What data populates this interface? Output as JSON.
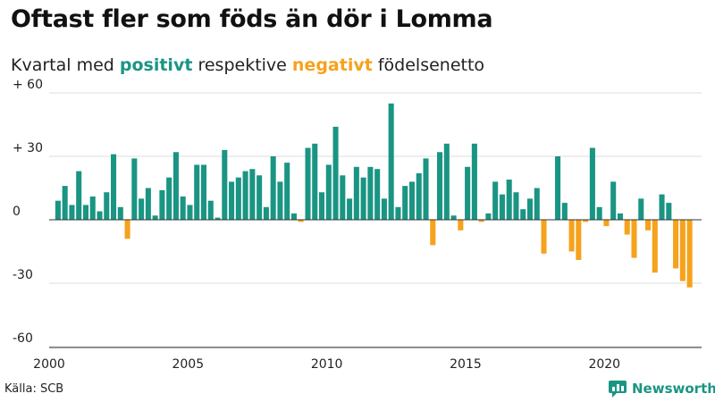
{
  "title": "Oftast fler som föds än dör i Lomma",
  "subtitle": {
    "prefix": "Kvartal med ",
    "positive_word": "positivt",
    "middle": " respektive ",
    "negative_word": "negativt",
    "suffix": " födelsenetto"
  },
  "source": "Källa: SCB",
  "brand": "Newsworthy",
  "colors": {
    "positive": "#1a9583",
    "negative": "#f5a21c",
    "grid": "#dddddd",
    "baseline": "#333333"
  },
  "chart_data": {
    "type": "bar",
    "x_start": "2000 Q1",
    "x_ticks": [
      2000,
      2005,
      2010,
      2015,
      2020
    ],
    "y_ticks": [
      60,
      30,
      0,
      -30,
      -60
    ],
    "y_tick_labels": [
      "+ 60",
      "+ 30",
      "0",
      "-30",
      "-60"
    ],
    "ylim": [
      -60,
      60
    ],
    "grid": true,
    "values": [
      9,
      16,
      7,
      23,
      7,
      11,
      4,
      13,
      31,
      6,
      -9,
      29,
      10,
      15,
      2,
      14,
      20,
      32,
      11,
      7,
      26,
      26,
      9,
      1,
      33,
      18,
      20,
      23,
      24,
      21,
      6,
      30,
      18,
      27,
      3,
      -1,
      34,
      36,
      13,
      26,
      44,
      21,
      10,
      25,
      20,
      25,
      24,
      10,
      55,
      6,
      16,
      18,
      22,
      29,
      -12,
      32,
      36,
      2,
      -5,
      25,
      36,
      -1,
      3,
      18,
      12,
      19,
      13,
      5,
      10,
      15,
      -16,
      0,
      30,
      8,
      -15,
      -19,
      -1,
      34,
      6,
      -3,
      18,
      3,
      -7,
      -18,
      10,
      -5,
      -25,
      12,
      8,
      -23,
      -29,
      -32
    ]
  }
}
